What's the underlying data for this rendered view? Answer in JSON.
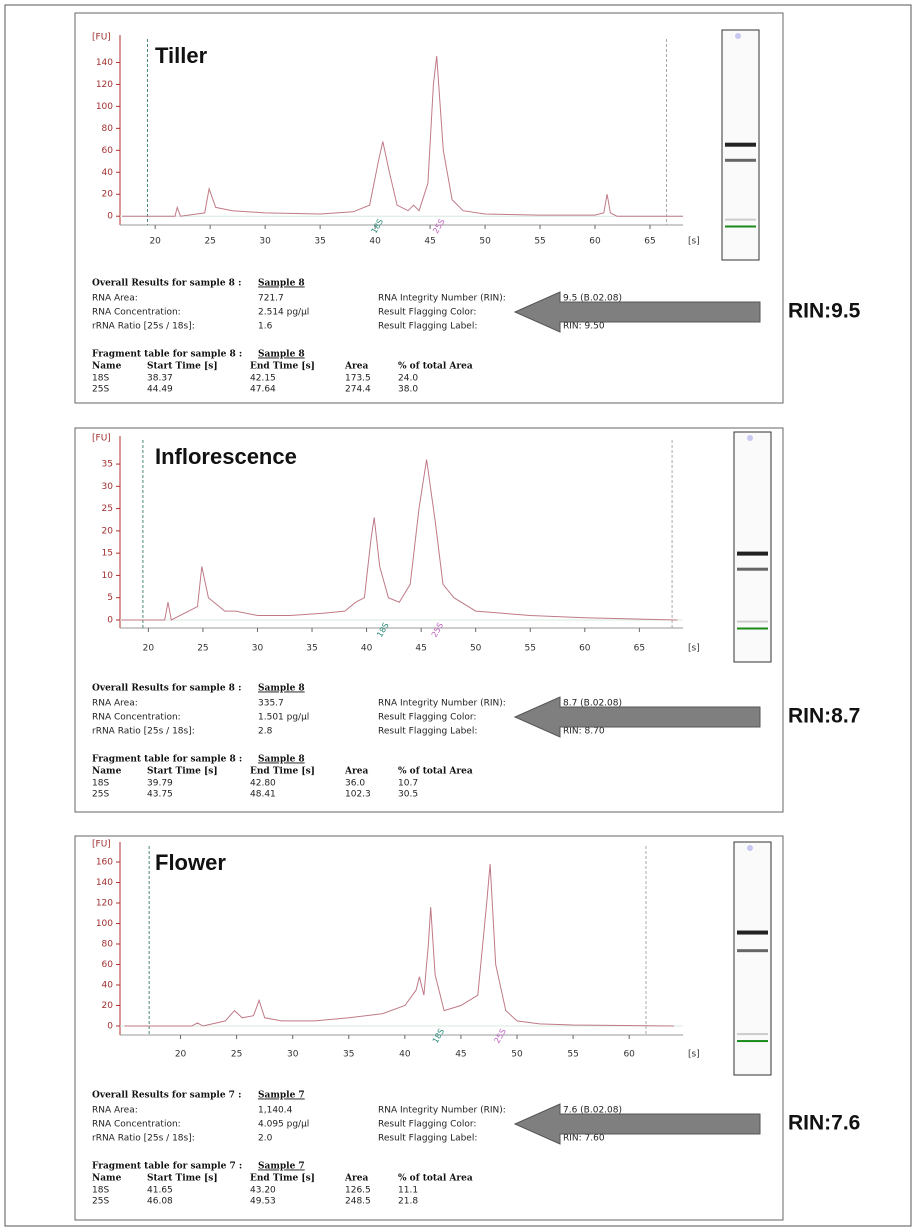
{
  "chart_data": [
    {
      "type": "line",
      "title": "Tiller",
      "y_label": "[FU]",
      "x_label": "[s]",
      "color": "#c07a86",
      "x": [
        17,
        20,
        21.8,
        22,
        22.3,
        24.5,
        24.9,
        25.5,
        27,
        30,
        35,
        38,
        39.5,
        40.3,
        40.7,
        41.3,
        42,
        43,
        43.5,
        44,
        44.8,
        45.3,
        45.6,
        46.2,
        47,
        48,
        50,
        55,
        60,
        60.8,
        61.1,
        61.4,
        62,
        68
      ],
      "values": [
        0,
        0,
        0,
        8,
        0,
        3,
        25,
        8,
        5,
        3,
        2,
        4,
        10,
        50,
        68,
        40,
        10,
        5,
        10,
        5,
        30,
        120,
        146,
        60,
        15,
        5,
        2,
        1,
        1,
        3,
        20,
        3,
        0,
        0
      ],
      "xlim": [
        16.8,
        68
      ],
      "ylim": [
        -8,
        165
      ],
      "xticks": [
        20,
        25,
        30,
        35,
        40,
        45,
        50,
        55,
        60,
        65
      ],
      "yticks": [
        0,
        20,
        40,
        60,
        80,
        100,
        120,
        140
      ],
      "marker_lines": [
        19.3,
        66.5
      ],
      "peak_labels": [
        {
          "text": "18S",
          "x": 40.2
        },
        {
          "text": "25S",
          "x": 45.8
        }
      ]
    },
    {
      "type": "line",
      "title": "Inflorescence",
      "y_label": "[FU]",
      "x_label": "[s]",
      "color": "#c07a86",
      "x": [
        17.5,
        21.5,
        21.8,
        22.1,
        24.5,
        24.9,
        25.5,
        26.5,
        27,
        28,
        30,
        33,
        36,
        38,
        39,
        39.8,
        40.4,
        40.7,
        41.2,
        42,
        43,
        44,
        44.8,
        45.5,
        46.3,
        47,
        48,
        50,
        55,
        60,
        68.5
      ],
      "values": [
        0,
        0,
        4,
        0,
        3,
        12,
        5,
        3,
        2,
        2,
        1,
        1,
        1.5,
        2,
        4,
        5,
        18,
        23,
        12,
        5,
        4,
        8,
        25,
        36,
        22,
        8,
        5,
        2,
        1,
        0.5,
        0
      ],
      "xlim": [
        17.4,
        69
      ],
      "ylim": [
        -1.8,
        41.3
      ],
      "xticks": [
        20,
        25,
        30,
        35,
        40,
        45,
        50,
        55,
        60,
        65
      ],
      "yticks": [
        0,
        5,
        10,
        15,
        20,
        25,
        30,
        35
      ],
      "marker_lines": [
        19.5,
        68
      ],
      "peak_labels": [
        {
          "text": "18S",
          "x": 41.5
        },
        {
          "text": "25S",
          "x": 46.5
        }
      ]
    },
    {
      "type": "line",
      "title": "Flower",
      "y_label": "[FU]",
      "x_label": "[s]",
      "color": "#c07a86",
      "x": [
        15,
        21,
        21.5,
        22,
        24,
        24.8,
        25.5,
        26.5,
        27,
        27.5,
        29,
        32,
        35,
        38,
        40,
        41,
        41.3,
        41.7,
        42.1,
        42.3,
        42.7,
        43.5,
        45,
        46.5,
        47.3,
        47.6,
        48.1,
        49,
        50,
        52,
        55,
        64
      ],
      "values": [
        0,
        0,
        3,
        0,
        5,
        15,
        8,
        10,
        25,
        8,
        5,
        5,
        8,
        12,
        20,
        35,
        48,
        30,
        80,
        116,
        50,
        15,
        20,
        30,
        120,
        158,
        60,
        15,
        5,
        2,
        1,
        0
      ],
      "xlim": [
        14.6,
        64.8
      ],
      "ylim": [
        -8.8,
        179.5
      ],
      "xticks": [
        20,
        25,
        30,
        35,
        40,
        45,
        50,
        55,
        60
      ],
      "yticks": [
        0,
        20,
        40,
        60,
        80,
        100,
        120,
        140,
        160
      ],
      "marker_lines": [
        17.2,
        61.5
      ],
      "peak_labels": [
        {
          "text": "18S",
          "x": 43
        },
        {
          "text": "25S",
          "x": 48.5
        }
      ]
    }
  ],
  "reports": [
    {
      "heading": "Overall Results for sample 8 :",
      "sample": "Sample 8",
      "left": [
        [
          "RNA Area:",
          "721.7"
        ],
        [
          "RNA Concentration:",
          "2.514 pg/µl"
        ],
        [
          "rRNA Ratio [25s / 18s]:",
          "1.6"
        ]
      ],
      "right": [
        [
          "RNA Integrity Number (RIN):",
          "9.5  (B.02.08)"
        ],
        [
          "Result Flagging Color:"
        ],
        [
          "Result Flagging Label:",
          "RIN: 9.50"
        ]
      ],
      "fragment_heading": "Fragment table for sample 8 :",
      "fragment_sample": "Sample 8",
      "columns": [
        "Name",
        "Start Time [s]",
        "End Time [s]",
        "Area",
        "% of total Area"
      ],
      "rows": [
        [
          "18S",
          "38.37",
          "42.15",
          "173.5",
          "24.0"
        ],
        [
          "25S",
          "44.49",
          "47.64",
          "274.4",
          "38.0"
        ]
      ],
      "callout": "RIN:9.5"
    },
    {
      "heading": "Overall Results for sample 8 :",
      "sample": "Sample 8",
      "left": [
        [
          "RNA Area:",
          "335.7"
        ],
        [
          "RNA Concentration:",
          "1.501 pg/µl"
        ],
        [
          "rRNA Ratio [25s / 18s]:",
          "2.8"
        ]
      ],
      "right": [
        [
          "RNA Integrity Number (RIN):",
          "8.7  (B.02.08)"
        ],
        [
          "Result Flagging Color:"
        ],
        [
          "Result Flagging Label:",
          "RIN: 8.70"
        ]
      ],
      "fragment_heading": "Fragment table for sample 8 :",
      "fragment_sample": "Sample 8",
      "columns": [
        "Name",
        "Start Time [s]",
        "End Time [s]",
        "Area",
        "% of total Area"
      ],
      "rows": [
        [
          "18S",
          "39.79",
          "42.80",
          "36.0",
          "10.7"
        ],
        [
          "25S",
          "43.75",
          "48.41",
          "102.3",
          "30.5"
        ]
      ],
      "callout": "RIN:8.7"
    },
    {
      "heading": "Overall Results for sample 7 :",
      "sample": "Sample 7",
      "left": [
        [
          "RNA Area:",
          "1,140.4"
        ],
        [
          "RNA Concentration:",
          "4.095 pg/µl"
        ],
        [
          "rRNA Ratio [25s / 18s]:",
          "2.0"
        ]
      ],
      "right": [
        [
          "RNA Integrity Number (RIN):",
          "7.6  (B.02.08)"
        ],
        [
          "Result Flagging Color:"
        ],
        [
          "Result Flagging Label:",
          "RIN: 7.60"
        ]
      ],
      "fragment_heading": "Fragment table for sample 7 :",
      "fragment_sample": "Sample 7",
      "columns": [
        "Name",
        "Start Time [s]",
        "End Time [s]",
        "Area",
        "% of total Area"
      ],
      "rows": [
        [
          "18S",
          "41.65",
          "43.20",
          "126.5",
          "11.1"
        ],
        [
          "25S",
          "46.08",
          "49.53",
          "248.5",
          "21.8"
        ]
      ],
      "callout": "RIN:7.6"
    }
  ]
}
